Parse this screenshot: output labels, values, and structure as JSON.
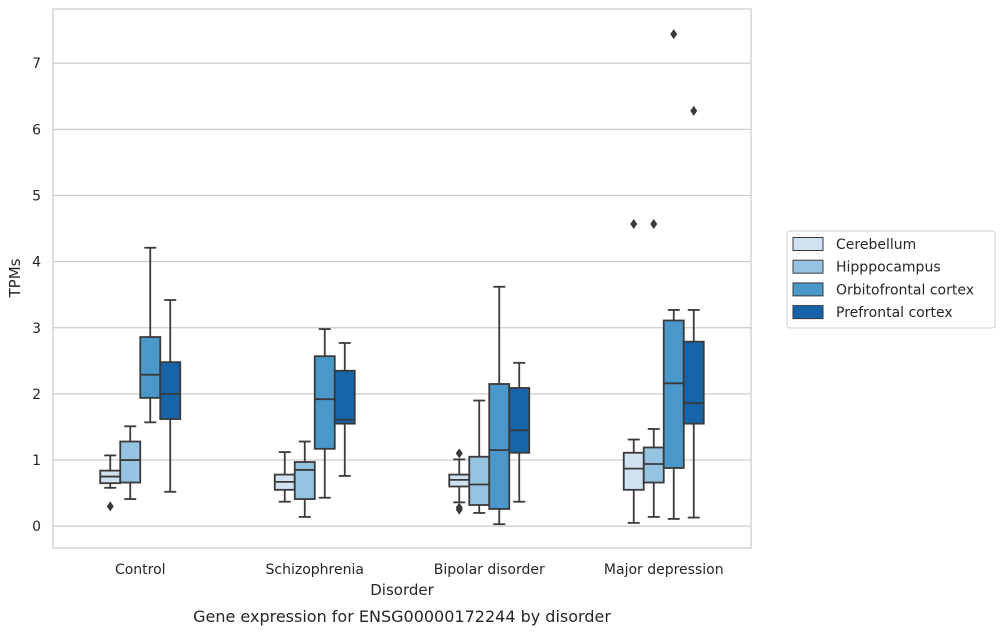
{
  "chart_data": {
    "type": "box",
    "title": "Gene expression for ENSG00000172244 by disorder",
    "xlabel": "Disorder",
    "ylabel": "TPMs",
    "ylim": [
      -0.33,
      7.82
    ],
    "yticks": [
      0,
      1,
      2,
      3,
      4,
      5,
      6,
      7
    ],
    "categories": [
      "Control",
      "Schizophrenia",
      "Bipolar disorder",
      "Major depression"
    ],
    "grid": "horizontal",
    "legend_position": "right",
    "series": [
      {
        "name": "Cerebellum",
        "color": "#d0e1f2",
        "boxes": [
          {
            "category": "Control",
            "whislo": 0.58,
            "q1": 0.65,
            "med": 0.75,
            "q3": 0.84,
            "whishi": 1.07,
            "fliers": [
              0.3
            ]
          },
          {
            "category": "Schizophrenia",
            "whislo": 0.37,
            "q1": 0.55,
            "med": 0.67,
            "q3": 0.78,
            "whishi": 1.12,
            "fliers": []
          },
          {
            "category": "Bipolar disorder",
            "whislo": 0.36,
            "q1": 0.6,
            "med": 0.7,
            "q3": 0.78,
            "whishi": 1.01,
            "fliers": [
              0.25,
              0.28,
              1.1
            ]
          },
          {
            "category": "Major depression",
            "whislo": 0.05,
            "q1": 0.55,
            "med": 0.87,
            "q3": 1.11,
            "whishi": 1.31,
            "fliers": [
              4.57
            ]
          }
        ]
      },
      {
        "name": "Hipppocampus",
        "color": "#94c4df",
        "boxes": [
          {
            "category": "Control",
            "whislo": 0.41,
            "q1": 0.66,
            "med": 1.0,
            "q3": 1.28,
            "whishi": 1.51,
            "fliers": []
          },
          {
            "category": "Schizophrenia",
            "whislo": 0.14,
            "q1": 0.41,
            "med": 0.85,
            "q3": 0.97,
            "whishi": 1.28,
            "fliers": []
          },
          {
            "category": "Bipolar disorder",
            "whislo": 0.2,
            "q1": 0.32,
            "med": 0.63,
            "q3": 1.05,
            "whishi": 1.9,
            "fliers": []
          },
          {
            "category": "Major depression",
            "whislo": 0.14,
            "q1": 0.66,
            "med": 0.94,
            "q3": 1.19,
            "whishi": 1.47,
            "fliers": [
              4.57
            ]
          }
        ]
      },
      {
        "name": "Orbitofrontal cortex",
        "color": "#4a98c9",
        "boxes": [
          {
            "category": "Control",
            "whislo": 1.57,
            "q1": 1.94,
            "med": 2.29,
            "q3": 2.86,
            "whishi": 4.21,
            "fliers": []
          },
          {
            "category": "Schizophrenia",
            "whislo": 0.43,
            "q1": 1.17,
            "med": 1.92,
            "q3": 2.57,
            "whishi": 2.98,
            "fliers": []
          },
          {
            "category": "Bipolar disorder",
            "whislo": 0.03,
            "q1": 0.26,
            "med": 1.15,
            "q3": 2.15,
            "whishi": 3.62,
            "fliers": []
          },
          {
            "category": "Major depression",
            "whislo": 0.11,
            "q1": 0.88,
            "med": 2.16,
            "q3": 3.11,
            "whishi": 3.27,
            "fliers": [
              7.44
            ]
          }
        ]
      },
      {
        "name": "Prefrontal cortex",
        "color": "#1764ab",
        "boxes": [
          {
            "category": "Control",
            "whislo": 0.52,
            "q1": 1.62,
            "med": 2.0,
            "q3": 2.48,
            "whishi": 3.42,
            "fliers": []
          },
          {
            "category": "Schizophrenia",
            "whislo": 0.76,
            "q1": 1.55,
            "med": 1.61,
            "q3": 2.35,
            "whishi": 2.77,
            "fliers": []
          },
          {
            "category": "Bipolar disorder",
            "whislo": 0.37,
            "q1": 1.11,
            "med": 1.45,
            "q3": 2.09,
            "whishi": 2.47,
            "fliers": []
          },
          {
            "category": "Major depression",
            "whislo": 0.13,
            "q1": 1.55,
            "med": 1.86,
            "q3": 2.79,
            "whishi": 3.27,
            "fliers": [
              6.28
            ]
          }
        ]
      }
    ]
  }
}
